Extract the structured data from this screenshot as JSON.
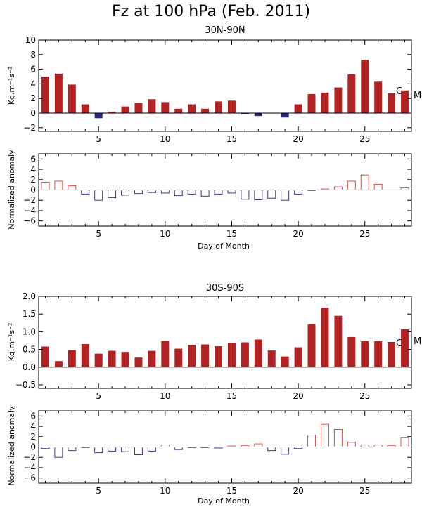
{
  "title": "Fz at 100 hPa (Feb. 2011)",
  "colors": {
    "positive": "#b22222",
    "negative": "#26267a",
    "anom_positive": "#e0504a",
    "anom_negative": "#3d3d8c",
    "axis": "#000000"
  },
  "chart_data": [
    {
      "type": "bar",
      "style": "filled",
      "subtitle": "30N-90N",
      "ylabel": "Kg.m⁻¹s⁻²",
      "ylim": [
        -2.5,
        10
      ],
      "yticks": [
        -2,
        0,
        2,
        4,
        6,
        8,
        10
      ],
      "ytick_labels": [
        "−2",
        "0",
        "2",
        "4",
        "6",
        "8",
        "10"
      ],
      "xlim": [
        0.5,
        28.5
      ],
      "xticks": [
        5,
        10,
        15,
        20,
        25
      ],
      "x": [
        1,
        2,
        3,
        4,
        5,
        6,
        7,
        8,
        9,
        10,
        11,
        12,
        13,
        14,
        15,
        16,
        17,
        18,
        19,
        20,
        21,
        22,
        23,
        24,
        25,
        26,
        27,
        28
      ],
      "values": [
        5.0,
        5.4,
        3.9,
        1.2,
        -0.7,
        0.2,
        0.9,
        1.4,
        1.9,
        1.5,
        0.6,
        1.2,
        0.6,
        1.6,
        1.7,
        -0.15,
        -0.4,
        0.0,
        -0.6,
        1.2,
        2.6,
        2.8,
        3.5,
        5.3,
        7.3,
        4.3,
        2.7,
        3.1
      ],
      "side_labels": [
        "C",
        "M"
      ]
    },
    {
      "type": "bar",
      "style": "outline",
      "ylabel": "Normalized anomaly",
      "ylim": [
        -7,
        7
      ],
      "yticks": [
        -6,
        -4,
        -2,
        0,
        2,
        4,
        6
      ],
      "ytick_labels": [
        "−6",
        "−4",
        "−2",
        "0",
        "2",
        "4",
        "6"
      ],
      "xlim": [
        0.5,
        28.5
      ],
      "xticks": [
        5,
        10,
        15,
        20,
        25
      ],
      "xlabel": "Day of Month",
      "x": [
        1,
        2,
        3,
        4,
        5,
        6,
        7,
        8,
        9,
        10,
        11,
        12,
        13,
        14,
        15,
        16,
        17,
        18,
        19,
        20,
        21,
        22,
        23,
        24,
        25,
        26,
        27,
        28
      ],
      "values": [
        1.5,
        1.7,
        0.8,
        -0.8,
        -2.0,
        -1.5,
        -1.0,
        -0.7,
        -0.5,
        -0.6,
        -1.1,
        -0.8,
        -1.2,
        -0.8,
        -0.6,
        -1.8,
        -1.9,
        -1.6,
        -2.0,
        -0.8,
        -0.1,
        0.2,
        0.6,
        1.7,
        2.9,
        1.1,
        0.0,
        0.4
      ]
    },
    {
      "type": "bar",
      "style": "filled",
      "subtitle": "30S-90S",
      "ylabel": "Kg.m⁻¹s⁻²",
      "ylim": [
        -0.6,
        2.0
      ],
      "yticks": [
        -0.5,
        0.0,
        0.5,
        1.0,
        1.5,
        2.0
      ],
      "ytick_labels": [
        "−0.5",
        "0.0",
        "0.5",
        "1.0",
        "1.5",
        "2.0"
      ],
      "xlim": [
        0.5,
        28.5
      ],
      "xticks": [
        5,
        10,
        15,
        20,
        25
      ],
      "x": [
        1,
        2,
        3,
        4,
        5,
        6,
        7,
        8,
        9,
        10,
        11,
        12,
        13,
        14,
        15,
        16,
        17,
        18,
        19,
        20,
        21,
        22,
        23,
        24,
        25,
        26,
        27,
        28
      ],
      "values": [
        0.58,
        0.17,
        0.48,
        0.65,
        0.38,
        0.46,
        0.43,
        0.27,
        0.46,
        0.74,
        0.52,
        0.63,
        0.64,
        0.59,
        0.69,
        0.7,
        0.78,
        0.47,
        0.3,
        0.56,
        1.21,
        1.68,
        1.45,
        0.85,
        0.73,
        0.73,
        0.71,
        1.07
      ],
      "side_labels": [
        "C",
        "M"
      ]
    },
    {
      "type": "bar",
      "style": "outline",
      "ylabel": "Normalized anomaly",
      "ylim": [
        -7,
        7
      ],
      "yticks": [
        -6,
        -4,
        -2,
        0,
        2,
        4,
        6
      ],
      "ytick_labels": [
        "−6",
        "−4",
        "−2",
        "0",
        "2",
        "4",
        "6"
      ],
      "xlim": [
        0.5,
        28.5
      ],
      "xticks": [
        5,
        10,
        15,
        20,
        25
      ],
      "xlabel": "Day of Month",
      "x": [
        1,
        2,
        3,
        4,
        5,
        6,
        7,
        8,
        9,
        10,
        11,
        12,
        13,
        14,
        15,
        16,
        17,
        18,
        19,
        20,
        21,
        22,
        23,
        24,
        25,
        26,
        27,
        28
      ],
      "values": [
        -0.3,
        -2.0,
        -0.7,
        -0.1,
        -1.1,
        -0.8,
        -0.9,
        -1.5,
        -0.8,
        0.4,
        -0.5,
        -0.1,
        -0.1,
        -0.2,
        0.2,
        0.3,
        0.6,
        -0.7,
        -1.4,
        -0.3,
        2.3,
        4.4,
        3.4,
        0.9,
        0.4,
        0.4,
        0.3,
        1.8
      ]
    }
  ]
}
